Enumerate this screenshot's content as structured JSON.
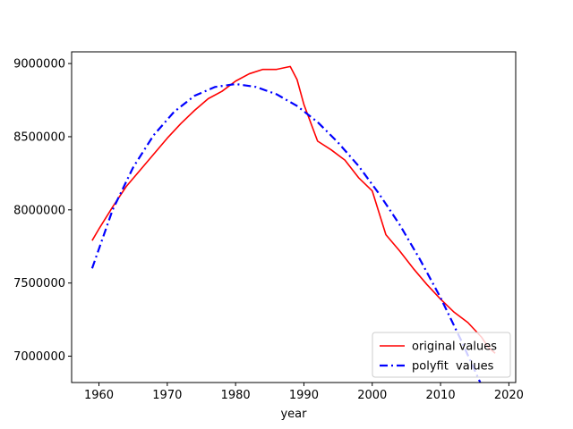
{
  "chart_data": {
    "type": "line",
    "title": "",
    "xlabel": "year",
    "ylabel": "",
    "xlim": [
      1956,
      2021
    ],
    "ylim": [
      6820000,
      9080000
    ],
    "x_ticks": [
      1960,
      1970,
      1980,
      1990,
      2000,
      2010,
      2020
    ],
    "x_tick_labels": [
      "1960",
      "1970",
      "1980",
      "1990",
      "2000",
      "2010",
      "2020"
    ],
    "y_ticks": [
      7000000,
      7500000,
      8000000,
      8500000,
      9000000
    ],
    "y_tick_labels": [
      "7000000",
      "7500000",
      "8000000",
      "8500000",
      "9000000"
    ],
    "grid": false,
    "legend_position": "lower right",
    "series": [
      {
        "name": "original values",
        "color": "#ff0000",
        "style": "solid",
        "x": [
          1959,
          1960,
          1962,
          1964,
          1966,
          1968,
          1970,
          1972,
          1974,
          1976,
          1978,
          1980,
          1982,
          1984,
          1986,
          1988,
          1989,
          1990,
          1992,
          1994,
          1996,
          1998,
          2000,
          2002,
          2004,
          2006,
          2008,
          2010,
          2012,
          2014,
          2016,
          2017,
          2018
        ],
        "y": [
          7790000,
          7870000,
          8020000,
          8160000,
          8270000,
          8380000,
          8490000,
          8590000,
          8680000,
          8760000,
          8810000,
          8880000,
          8930000,
          8960000,
          8960000,
          8980000,
          8890000,
          8720000,
          8470000,
          8410000,
          8340000,
          8220000,
          8130000,
          7830000,
          7720000,
          7600000,
          7490000,
          7390000,
          7300000,
          7230000,
          7130000,
          7060000,
          7020000
        ]
      },
      {
        "name": "polyfit  values",
        "color": "#0000ff",
        "style": "dashdot",
        "x": [
          1959,
          1962,
          1965,
          1968,
          1971,
          1974,
          1977,
          1980,
          1983,
          1986,
          1989,
          1992,
          1995,
          1998,
          2001,
          2004,
          2007,
          2010,
          2013,
          2016,
          2018
        ],
        "y": [
          7600000,
          8000000,
          8290000,
          8510000,
          8670000,
          8780000,
          8840000,
          8860000,
          8840000,
          8790000,
          8710000,
          8600000,
          8460000,
          8300000,
          8110000,
          7900000,
          7660000,
          7400000,
          7110000,
          6800000,
          6570000
        ]
      }
    ]
  }
}
